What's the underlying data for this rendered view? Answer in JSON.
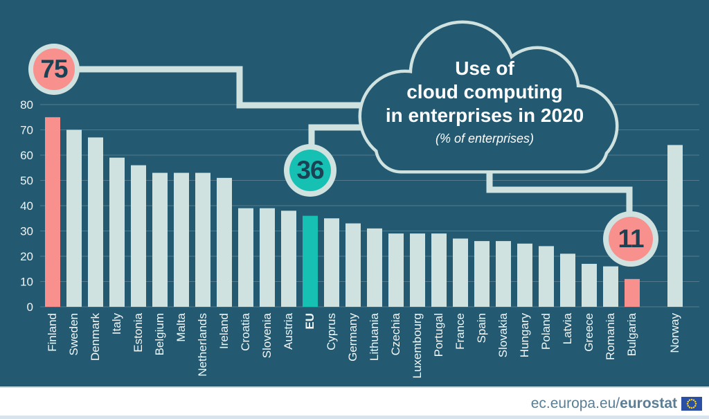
{
  "cloud_title": {
    "line1": "Use of",
    "line2": "cloud computing",
    "line3": "in enterprises in 2020",
    "subtitle": "(% of enterprises)"
  },
  "chart_data": {
    "type": "bar",
    "title": "Use of cloud computing in enterprises in 2020",
    "subtitle": "(% of enterprises)",
    "xlabel": "",
    "ylabel": "",
    "ylim": [
      0,
      80
    ],
    "yticks": [
      0,
      10,
      20,
      30,
      40,
      50,
      60,
      70,
      80
    ],
    "grid": true,
    "legend": "none",
    "categories": [
      "Finland",
      "Sweden",
      "Denmark",
      "Italy",
      "Estonia",
      "Belgium",
      "Malta",
      "Netherlands",
      "Ireland",
      "Croatia",
      "Slovenia",
      "Austria",
      "EU",
      "Cyprus",
      "Germany",
      "Lithuania",
      "Czechia",
      "Luxembourg",
      "Portugal",
      "France",
      "Spain",
      "Slovakia",
      "Hungary",
      "Poland",
      "Latvia",
      "Greece",
      "Romania",
      "Bulgaria",
      "Norway"
    ],
    "values": [
      75,
      70,
      67,
      59,
      56,
      53,
      53,
      53,
      51,
      39,
      39,
      38,
      36,
      35,
      33,
      31,
      29,
      29,
      29,
      27,
      26,
      26,
      25,
      24,
      21,
      17,
      16,
      11,
      64
    ],
    "bold_categories": [
      "EU"
    ],
    "separated_categories": [
      "Norway"
    ],
    "highlights": {
      "Finland": "salmon",
      "EU": "teal",
      "Bulgaria": "salmon"
    },
    "annotations": [
      {
        "value": "75",
        "target": "Finland",
        "color": "salmon"
      },
      {
        "value": "36",
        "target": "EU",
        "color": "teal"
      },
      {
        "value": "11",
        "target": "Bulgaria",
        "color": "salmon"
      }
    ]
  },
  "colors": {
    "background": "#235a71",
    "bar": "#cfe2e0",
    "salmon": "#f8908e",
    "teal": "#16c1b4",
    "ring": "#cfe2e0",
    "connector": "#cfe2e0",
    "grid": "#54798c",
    "axis_text": "#eef4f6",
    "callout_text": "#1b4154",
    "title_text": "#ffffff",
    "footer_text": "#5b7e94",
    "flag_blue": "#2b4fa2",
    "flag_star": "#f7d117"
  },
  "footer": {
    "url_regular": "ec.europa.eu/",
    "url_bold": "eurostat"
  }
}
